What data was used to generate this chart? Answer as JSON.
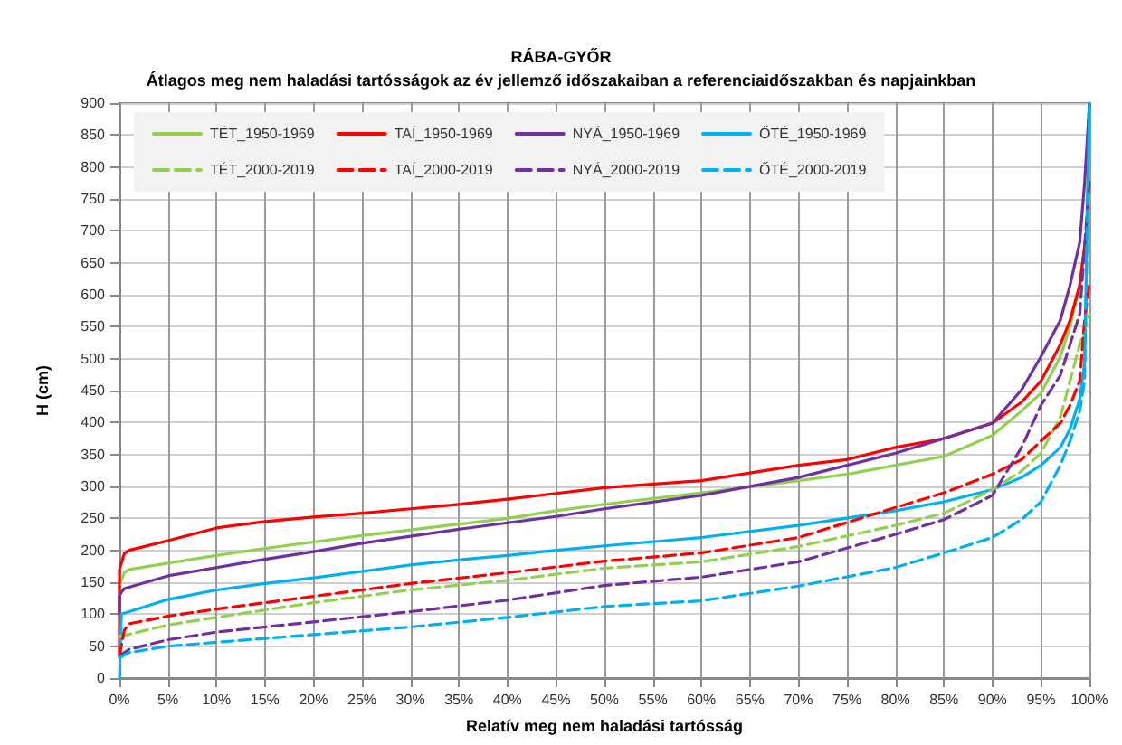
{
  "chart_data": {
    "type": "line",
    "title": "RÁBA-GYŐR",
    "subtitle": "Átlagos meg nem haladási tartósságok az év jellemző időszakaiban a referenciaidőszakban és napjainkban",
    "xlabel": "Relatív meg nem haladási tartósság",
    "ylabel": "H (cm)",
    "xlim": [
      0,
      100
    ],
    "xticks": [
      {
        "value": 0,
        "label": "0%"
      },
      {
        "value": 5,
        "label": "5%"
      },
      {
        "value": 10,
        "label": "10%"
      },
      {
        "value": 15,
        "label": "15%"
      },
      {
        "value": 20,
        "label": "20%"
      },
      {
        "value": 25,
        "label": "25%"
      },
      {
        "value": 30,
        "label": "30%"
      },
      {
        "value": 35,
        "label": "35%"
      },
      {
        "value": 40,
        "label": "40%"
      },
      {
        "value": 45,
        "label": "45%"
      },
      {
        "value": 50,
        "label": "50%"
      },
      {
        "value": 55,
        "label": "55%"
      },
      {
        "value": 60,
        "label": "60%"
      },
      {
        "value": 65,
        "label": "65%"
      },
      {
        "value": 70,
        "label": "70%"
      },
      {
        "value": 75,
        "label": "75%"
      },
      {
        "value": 80,
        "label": "80%"
      },
      {
        "value": 85,
        "label": "85%"
      },
      {
        "value": 90,
        "label": "90%"
      },
      {
        "value": 95,
        "label": "95%"
      },
      {
        "value": 100,
        "label": "100%"
      }
    ],
    "ylim": [
      0,
      900
    ],
    "yticks": [
      0,
      50,
      100,
      150,
      200,
      250,
      300,
      350,
      400,
      450,
      500,
      550,
      600,
      650,
      700,
      750,
      800,
      850,
      900
    ],
    "grid": true,
    "legend": "top left",
    "marker": "none",
    "series": [
      {
        "name": "TÉT_1950-1969",
        "color": "#92d050",
        "line_style": "solid",
        "x": [
          0,
          0,
          0.5,
          1,
          5,
          10,
          15,
          20,
          25,
          30,
          35,
          40,
          45,
          50,
          60,
          70,
          75,
          80,
          85,
          90,
          93,
          95,
          97,
          98,
          99,
          99.7,
          100
        ],
        "values": [
          100,
          145,
          165,
          170,
          180,
          192,
          203,
          213,
          223,
          232,
          241,
          250,
          262,
          272,
          290,
          309,
          319,
          333,
          347,
          380,
          418,
          446,
          503,
          550,
          615,
          700,
          900
        ]
      },
      {
        "name": "TAÍ_1950-1969",
        "color": "#ff0000",
        "line_style": "solid",
        "x": [
          0,
          0,
          0.5,
          1,
          5,
          10,
          15,
          20,
          25,
          30,
          35,
          40,
          45,
          50,
          60,
          70,
          75,
          80,
          85,
          90,
          93,
          95,
          97,
          98,
          99,
          99.7
        ],
        "values": [
          35,
          170,
          195,
          200,
          215,
          235,
          245,
          252,
          258,
          265,
          272,
          280,
          289,
          298,
          309,
          333,
          342,
          361,
          375,
          399,
          432,
          465,
          522,
          560,
          615,
          700
        ]
      },
      {
        "name": "NYÁ_1950-1969",
        "color": "#7030a0",
        "line_style": "solid",
        "x": [
          0,
          0,
          0.5,
          5,
          10,
          15,
          20,
          25,
          30,
          35,
          40,
          45,
          50,
          60,
          70,
          80,
          85,
          90,
          93,
          95,
          97,
          98,
          99,
          99.5,
          100
        ],
        "values": [
          100,
          130,
          140,
          160,
          173,
          186,
          198,
          211,
          222,
          233,
          243,
          253,
          265,
          286,
          314,
          352,
          375,
          399,
          451,
          503,
          560,
          615,
          682,
          775,
          900
        ]
      },
      {
        "name": "ŐTÉ_1950-1969",
        "color": "#00b0f0",
        "line_style": "solid",
        "x": [
          0,
          0.2,
          5,
          10,
          15,
          20,
          25,
          30,
          35,
          40,
          45,
          50,
          60,
          70,
          80,
          85,
          90,
          93,
          95,
          97,
          98,
          99,
          99.5,
          100
        ],
        "values": [
          0,
          100,
          123,
          138,
          148,
          157,
          167,
          177,
          185,
          192,
          200,
          207,
          220,
          239,
          262,
          276,
          295,
          314,
          333,
          361,
          390,
          437,
          493,
          900
        ]
      },
      {
        "name": "TÉT_2000-2019",
        "color": "#92d050",
        "line_style": "dashed",
        "x": [
          0,
          5,
          10,
          20,
          30,
          40,
          50,
          60,
          70,
          80,
          85,
          90,
          93,
          95,
          97,
          98,
          99,
          100
        ],
        "values": [
          65,
          83,
          95,
          118,
          138,
          153,
          172,
          182,
          206,
          239,
          258,
          295,
          324,
          352,
          408,
          465,
          522,
          570
        ]
      },
      {
        "name": "TAÍ_2000-2019",
        "color": "#ff0000",
        "line_style": "dashed",
        "x": [
          0,
          0.5,
          1,
          5,
          10,
          20,
          30,
          40,
          50,
          60,
          70,
          80,
          85,
          90,
          93,
          95,
          97,
          98,
          99,
          99.5,
          100
        ],
        "values": [
          35,
          75,
          85,
          97,
          108,
          128,
          148,
          165,
          183,
          196,
          220,
          267,
          290,
          319,
          342,
          371,
          399,
          427,
          465,
          560,
          620
        ]
      },
      {
        "name": "NYÁ_2000-2019",
        "color": "#7030a0",
        "line_style": "dashed",
        "x": [
          0,
          1,
          5,
          10,
          20,
          30,
          40,
          50,
          60,
          70,
          80,
          85,
          90,
          93,
          95,
          97,
          98,
          99,
          100
        ],
        "values": [
          35,
          45,
          60,
          72,
          88,
          104,
          122,
          145,
          158,
          182,
          225,
          248,
          286,
          361,
          427,
          474,
          522,
          570,
          780
        ]
      },
      {
        "name": "ŐTÉ_2000-2019",
        "color": "#00b0f0",
        "line_style": "dashed",
        "x": [
          0,
          1,
          5,
          10,
          20,
          30,
          40,
          50,
          60,
          70,
          80,
          85,
          90,
          93,
          95,
          97,
          98,
          99,
          99.5,
          100
        ],
        "values": [
          32,
          40,
          50,
          56,
          68,
          80,
          95,
          112,
          121,
          144,
          173,
          196,
          220,
          248,
          276,
          333,
          371,
          418,
          465,
          900
        ]
      }
    ]
  }
}
